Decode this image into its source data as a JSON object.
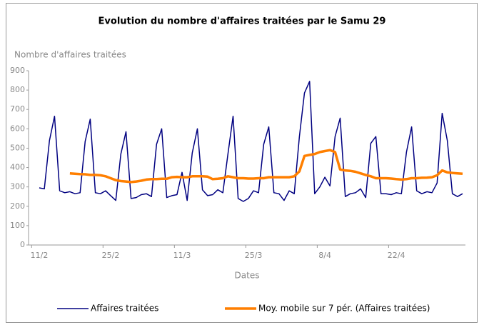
{
  "chart_data": {
    "type": "line",
    "title": "Evolution du nombre d'affaires traitées par le Samu 29",
    "y_label": "Nombre d'affaires traitées",
    "x_label": "Dates",
    "categories": [
      "11/2",
      null,
      null,
      null,
      null,
      null,
      null,
      null,
      null,
      null,
      null,
      null,
      null,
      null,
      "25/2",
      null,
      null,
      null,
      null,
      null,
      null,
      null,
      null,
      null,
      null,
      null,
      null,
      null,
      "11/3",
      null,
      null,
      null,
      null,
      null,
      null,
      null,
      null,
      null,
      null,
      null,
      null,
      null,
      "25/3",
      null,
      null,
      null,
      null,
      null,
      null,
      null,
      null,
      null,
      null,
      null,
      null,
      null,
      "8/4",
      null,
      null,
      null,
      null,
      null,
      null,
      null,
      null,
      null,
      null,
      null,
      null,
      null,
      "22/4",
      null,
      null,
      null,
      null,
      null,
      null,
      null,
      null,
      null,
      null,
      null,
      null,
      null
    ],
    "series": [
      {
        "name": "Affaires traitées",
        "color": "#000080",
        "width": 1.5,
        "values": [
          295,
          290,
          540,
          665,
          280,
          270,
          275,
          265,
          270,
          535,
          650,
          270,
          265,
          280,
          255,
          230,
          470,
          585,
          240,
          245,
          260,
          265,
          250,
          520,
          600,
          245,
          255,
          260,
          375,
          230,
          475,
          600,
          285,
          255,
          260,
          285,
          270,
          470,
          665,
          240,
          225,
          240,
          280,
          270,
          520,
          610,
          270,
          265,
          230,
          280,
          265,
          560,
          785,
          845,
          265,
          300,
          350,
          305,
          560,
          655,
          250,
          265,
          270,
          290,
          245,
          525,
          560,
          265,
          265,
          260,
          270,
          265,
          480,
          610,
          280,
          265,
          275,
          270,
          320,
          680,
          540,
          265,
          250,
          265
        ]
      },
      {
        "name": "Moy. mobile sur 7 pér. (Affaires traitées)",
        "color": "#ff7f00",
        "width": 3.5,
        "values": [
          null,
          null,
          null,
          null,
          null,
          null,
          370,
          368,
          366,
          365,
          362,
          362,
          360,
          355,
          345,
          335,
          330,
          328,
          325,
          328,
          332,
          338,
          340,
          340,
          342,
          342,
          350,
          352,
          350,
          350,
          355,
          355,
          355,
          353,
          340,
          342,
          345,
          355,
          350,
          345,
          345,
          343,
          343,
          345,
          345,
          350,
          350,
          350,
          350,
          350,
          355,
          380,
          460,
          465,
          470,
          480,
          485,
          490,
          480,
          390,
          385,
          383,
          378,
          370,
          362,
          355,
          345,
          345,
          345,
          343,
          340,
          338,
          340,
          345,
          345,
          347,
          348,
          350,
          360,
          385,
          375,
          372,
          370,
          368
        ]
      }
    ],
    "ylim": [
      0,
      900
    ],
    "yticks": [
      0,
      100,
      200,
      300,
      400,
      500,
      600,
      700,
      800,
      900
    ]
  }
}
